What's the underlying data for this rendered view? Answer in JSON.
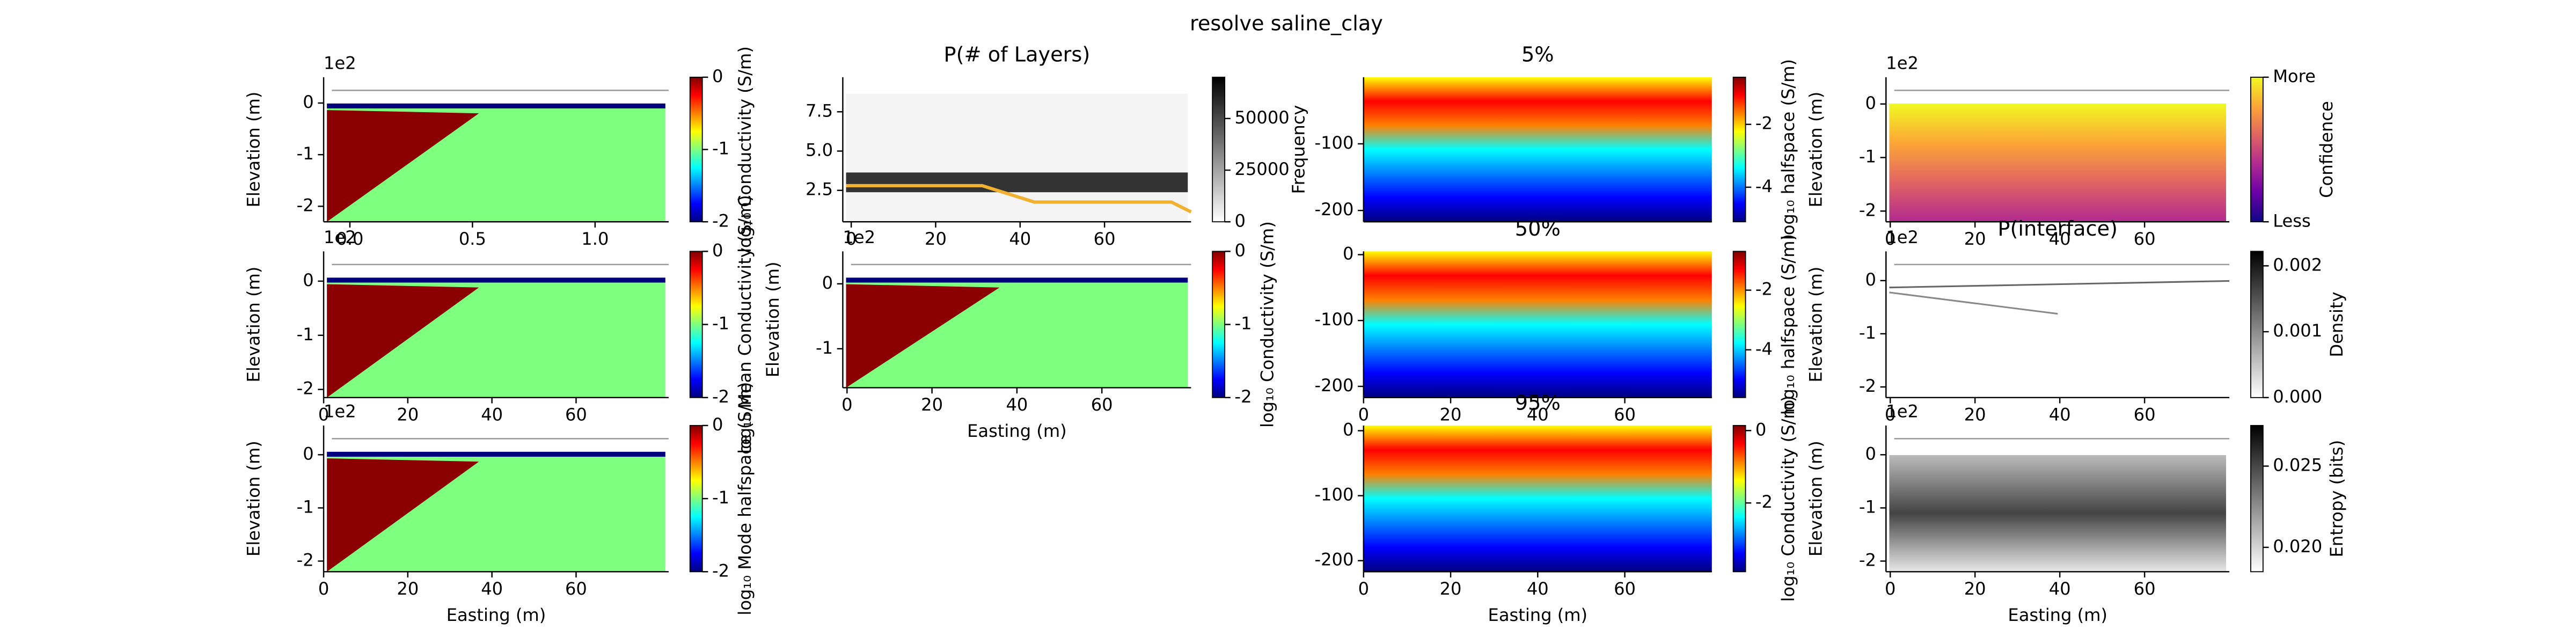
{
  "title": "resolve saline_clay",
  "chart_data": [
    {
      "type": "heatmap",
      "ylabel": "Elevation (m)",
      "y_offset_label": "1e2",
      "xlim": [
        -0.107,
        1.3
      ],
      "ylim": [
        -2.3,
        0.5
      ],
      "xticks": [
        {
          "value": 0,
          "label": "0.0"
        },
        {
          "value": 0.5,
          "label": "0.5"
        },
        {
          "value": 1,
          "label": "1.0"
        }
      ],
      "yticks": [
        0,
        -1,
        -2
      ],
      "colormap": "jet",
      "colorbar": {
        "label": "log₁₀ Conductivity (S/m)",
        "lim": [
          -2,
          0
        ],
        "ticks": [
          0,
          -1,
          -2
        ]
      }
    },
    {
      "type": "heatmap",
      "title": "P(# of Layers)",
      "xlim": [
        -2,
        80.5
      ],
      "ylim": [
        0.5,
        9.7
      ],
      "xticks": [
        0,
        20,
        40,
        60
      ],
      "yticks": [
        {
          "value": 2.5,
          "label": "2.5"
        },
        {
          "value": 5,
          "label": "5.0"
        },
        {
          "value": 7.5,
          "label": "7.5"
        }
      ],
      "colormap": "gray_r",
      "colorbar": {
        "label": "Frequency",
        "lim": [
          0,
          70000
        ],
        "ticks": [
          0,
          25000,
          50000
        ]
      }
    },
    {
      "type": "heatmap",
      "title": "5%",
      "xlim": [
        0,
        80
      ],
      "ylim": [
        -217,
        0
      ],
      "yticks": [
        -100,
        -200
      ],
      "colormap": "jet",
      "colorbar": {
        "label": "log₁₀ halfspace (S/m)",
        "lim": [
          -5.1,
          -0.5
        ],
        "ticks": [
          -2,
          -4
        ]
      }
    },
    {
      "type": "heatmap",
      "ylabel": "Elevation (m)",
      "y_offset_label": "1e2",
      "xlim": [
        -1,
        80
      ],
      "ylim": [
        -2.2,
        0.5
      ],
      "xticks": [
        0,
        20,
        40,
        60
      ],
      "yticks": [
        0,
        -1,
        -2
      ],
      "colormap": "plasma",
      "colorbar": {
        "label": "Confidence",
        "lim": [
          0,
          1
        ],
        "ticks": [
          {
            "value": 1,
            "label": "More"
          },
          {
            "value": 0,
            "label": "Less"
          }
        ]
      }
    },
    {
      "type": "heatmap",
      "ylabel": "Elevation (m)",
      "y_offset_label": "1e2",
      "xlim": [
        0,
        82
      ],
      "ylim": [
        -2.15,
        0.55
      ],
      "xticks": [
        0,
        20,
        40,
        60
      ],
      "yticks": [
        0,
        -1,
        -2
      ],
      "colormap": "jet",
      "colorbar": {
        "label": "log₁₀ Mean Conductivity (S/m)",
        "lim": [
          -2,
          0
        ],
        "ticks": [
          0,
          -1,
          -2
        ]
      }
    },
    {
      "type": "heatmap",
      "ylabel": "Elevation (m)",
      "xlabel": "Easting (m)",
      "y_offset_label": "1e2",
      "xlim": [
        -1,
        81
      ],
      "ylim": [
        -1.6,
        0.5
      ],
      "xticks": [
        0,
        20,
        40,
        60
      ],
      "yticks": [
        0,
        -1
      ],
      "colormap": "jet",
      "colorbar": {
        "label": "log₁₀ Conductivity (S/m)",
        "lim": [
          -2,
          0
        ],
        "ticks": [
          0,
          -1,
          -2
        ]
      }
    },
    {
      "type": "heatmap",
      "title": "50%",
      "xlim": [
        0,
        80
      ],
      "ylim": [
        -217,
        5
      ],
      "xticks": [
        0,
        20,
        40,
        60
      ],
      "yticks": [
        0,
        -100,
        -200
      ],
      "colormap": "jet",
      "colorbar": {
        "label": "log₁₀ halfspace (S/m)",
        "lim": [
          -5.6,
          -0.7
        ],
        "ticks": [
          -2,
          -4
        ]
      }
    },
    {
      "type": "heatmap",
      "title": "P(interface)",
      "ylabel": "Elevation (m)",
      "y_offset_label": "1e2",
      "xlim": [
        -1,
        80
      ],
      "ylim": [
        -2.2,
        0.55
      ],
      "xticks": [
        0,
        20,
        40,
        60
      ],
      "yticks": [
        0,
        -1,
        -2
      ],
      "colormap": "gray_r",
      "colorbar": {
        "label": "Density",
        "lim": [
          0,
          0.00222
        ],
        "ticks": [
          {
            "value": 0,
            "label": "0.000"
          },
          {
            "value": 0.001,
            "label": "0.001"
          },
          {
            "value": 0.002,
            "label": "0.002"
          }
        ]
      }
    },
    {
      "type": "heatmap",
      "ylabel": "Elevation (m)",
      "xlabel": "Easting (m)",
      "y_offset_label": "1e2",
      "xlim": [
        0,
        82
      ],
      "ylim": [
        -2.2,
        0.55
      ],
      "xticks": [
        0,
        20,
        40,
        60
      ],
      "yticks": [
        0,
        -1,
        -2
      ],
      "colormap": "jet",
      "colorbar": {
        "label": "log₁₀ Mode halfspace (S/m)",
        "lim": [
          -2,
          0
        ],
        "ticks": [
          0,
          -1,
          -2
        ]
      }
    },
    {
      "type": "heatmap",
      "title": "95%",
      "xlabel": "Easting (m)",
      "xlim": [
        0,
        80
      ],
      "ylim": [
        -217,
        8
      ],
      "xticks": [
        0,
        20,
        40,
        60
      ],
      "yticks": [
        0,
        -100,
        -200
      ],
      "colormap": "jet",
      "colorbar": {
        "label": "log₁₀ Conductivity (S/m)",
        "lim": [
          -3.9,
          0.14
        ],
        "ticks": [
          0,
          -2
        ]
      }
    },
    {
      "type": "heatmap",
      "ylabel": "Elevation (m)",
      "xlabel": "Easting (m)",
      "y_offset_label": "1e2",
      "xlim": [
        -1,
        80
      ],
      "ylim": [
        -2.2,
        0.55
      ],
      "xticks": [
        0,
        20,
        40,
        60
      ],
      "yticks": [
        0,
        -1,
        -2
      ],
      "colormap": "gray_r",
      "colorbar": {
        "label": "Entropy (bits)",
        "lim": [
          0.0185,
          0.0275
        ],
        "ticks": [
          {
            "value": 0.02,
            "label": "0.020"
          },
          {
            "value": 0.025,
            "label": "0.025"
          }
        ]
      }
    }
  ]
}
